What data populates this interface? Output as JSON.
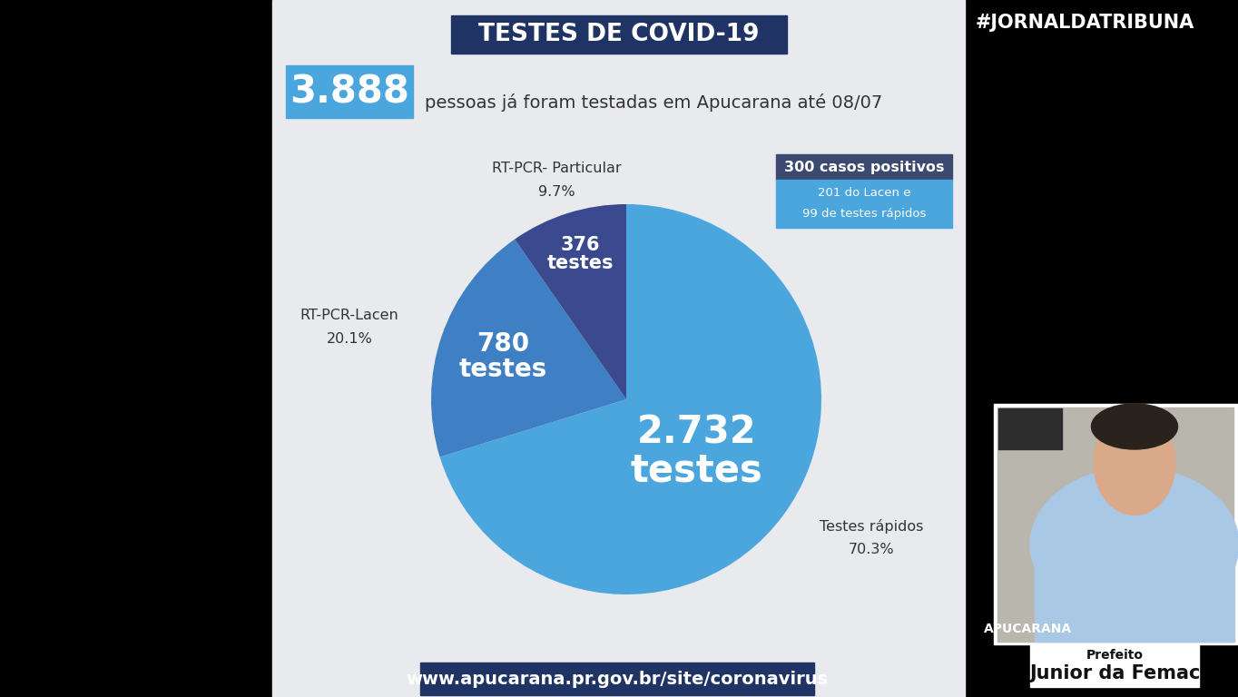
{
  "chart_data": {
    "type": "pie",
    "title": "TESTES DE COVID-19",
    "headline_number": "3.888",
    "headline_text": "pessoas já foram testadas em Apucarana até 08/07",
    "categories": [
      "Testes rápidos",
      "RT-PCR-Lacen",
      "RT-PCR- Particular"
    ],
    "values": [
      70.3,
      20.1,
      9.7
    ],
    "value_labels": [
      "70.3%",
      "20.1%",
      "9.7%"
    ],
    "slice_texts": [
      "2.732 testes",
      "780 testes",
      "376 testes"
    ],
    "colors": [
      "#4ba6de",
      "#3f7fc3",
      "#3b4a8e"
    ],
    "data_labels": true,
    "cases_box": {
      "title": "300 casos positivos",
      "lines": [
        "201 do Lacen e",
        "99 de testes rápidos"
      ]
    },
    "url": "www.apucarana.pr.gov.br/site/coronavirus",
    "hashtag": "#JORNALDATRIBUNA",
    "inset": {
      "logo": "APUCARANA",
      "caption_role": "Prefeito",
      "caption_name": "Junior da Femac"
    }
  }
}
